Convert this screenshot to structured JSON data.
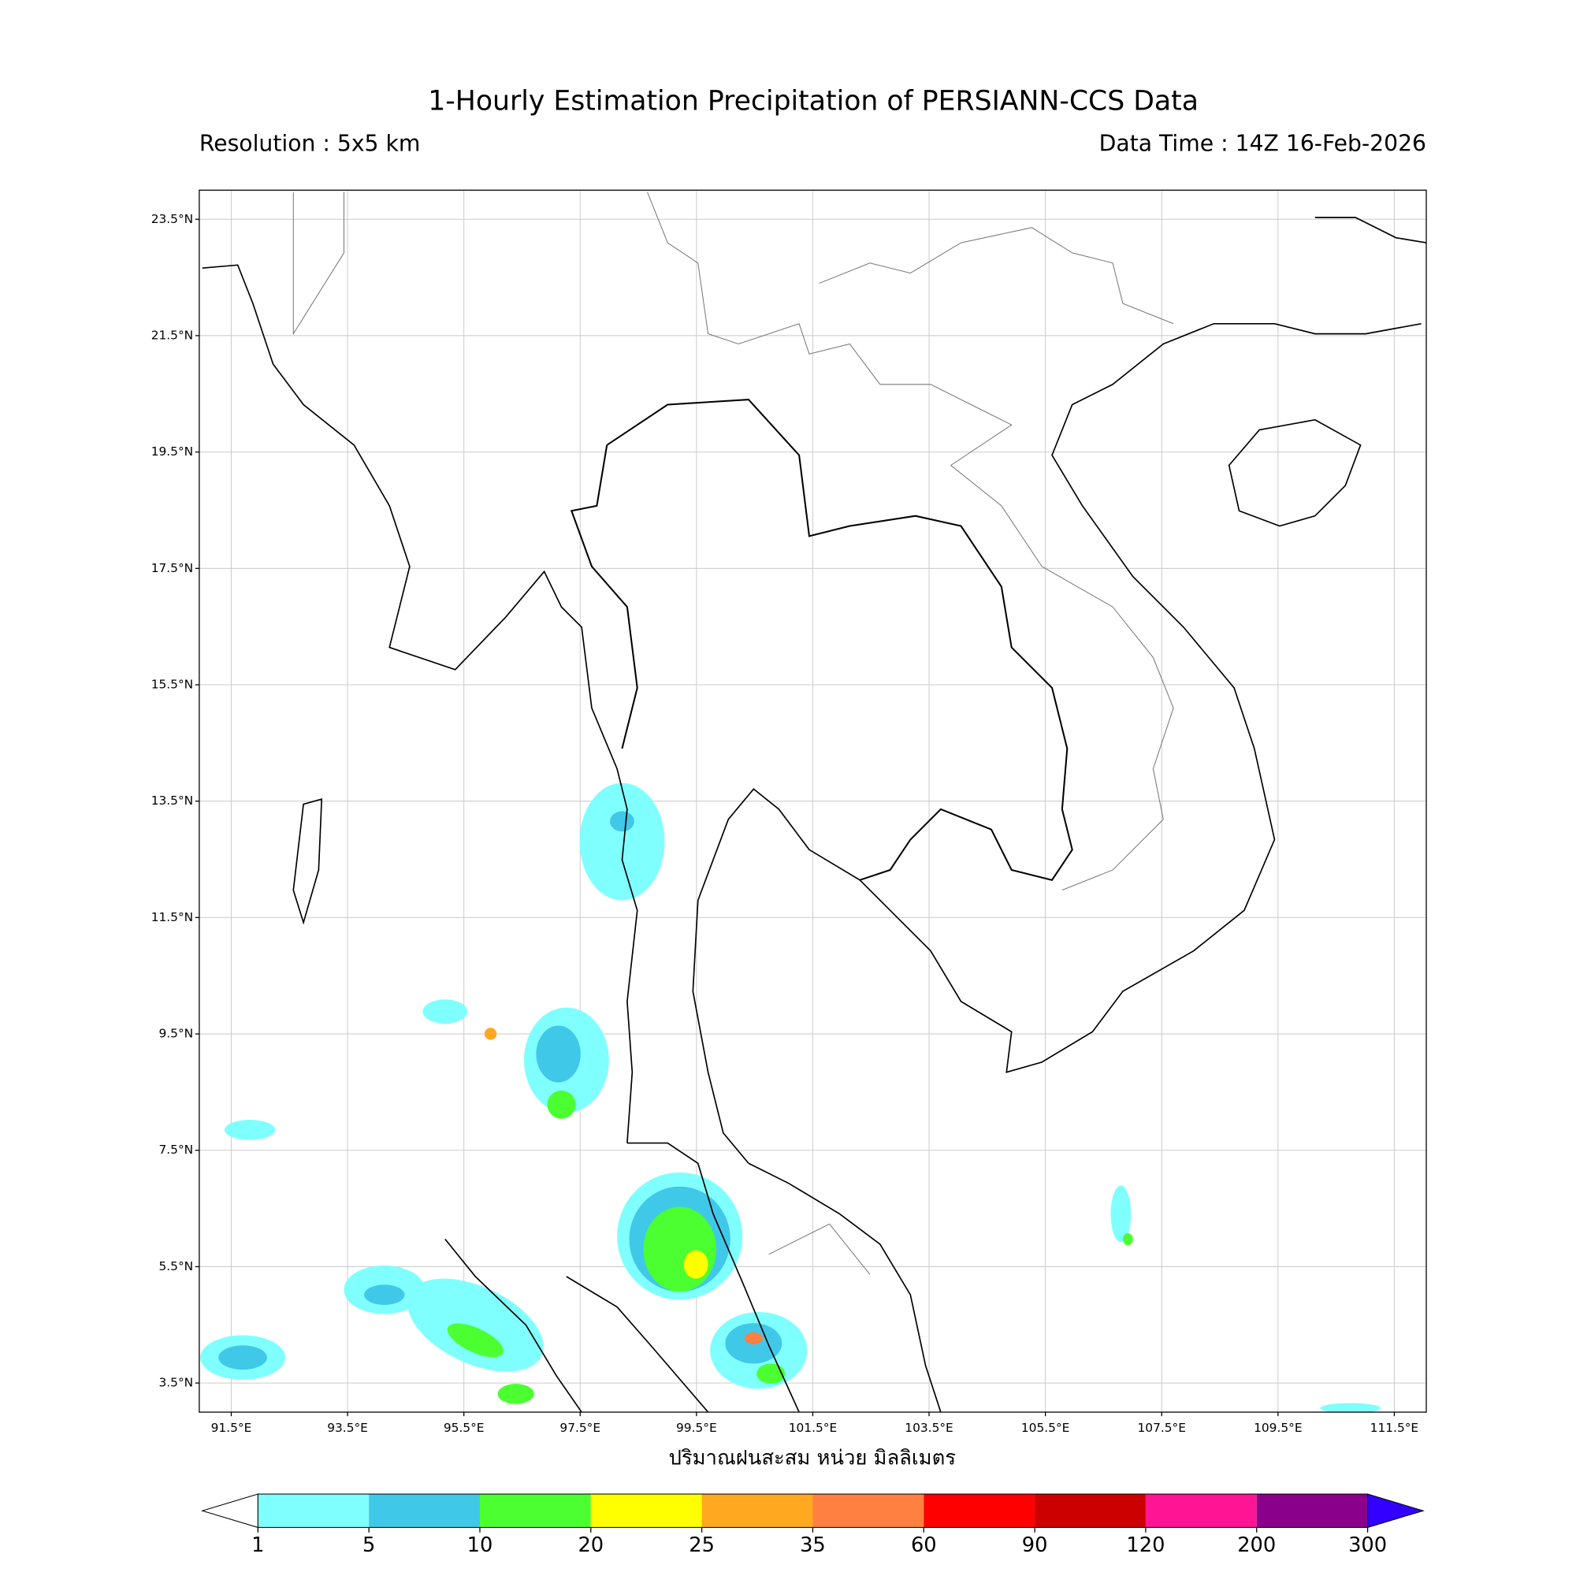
{
  "title": "1-Hourly Estimation Precipitation of PERSIANN-CCS Data",
  "resolution": "Resolution : 5x5 km",
  "data_time": "Data Time : 14Z 16-Feb-2026",
  "map": {
    "lon_range": [
      90.95,
      112.05
    ],
    "lat_range": [
      3.0,
      24.0
    ],
    "grid": true,
    "lat_ticks": [
      {
        "value": 23.5,
        "label": "23.5°N"
      },
      {
        "value": 21.5,
        "label": "21.5°N"
      },
      {
        "value": 19.5,
        "label": "19.5°N"
      },
      {
        "value": 17.5,
        "label": "17.5°N"
      },
      {
        "value": 15.5,
        "label": "15.5°N"
      },
      {
        "value": 13.5,
        "label": "13.5°N"
      },
      {
        "value": 11.5,
        "label": "11.5°N"
      },
      {
        "value": 9.5,
        "label": "9.5°N"
      },
      {
        "value": 7.5,
        "label": "7.5°N"
      },
      {
        "value": 5.5,
        "label": "5.5°N"
      },
      {
        "value": 3.5,
        "label": "3.5°N"
      }
    ],
    "lon_ticks": [
      {
        "value": 91.5,
        "label": "91.5°E"
      },
      {
        "value": 93.5,
        "label": "93.5°E"
      },
      {
        "value": 95.5,
        "label": "95.5°E"
      },
      {
        "value": 97.5,
        "label": "97.5°E"
      },
      {
        "value": 99.5,
        "label": "99.5°E"
      },
      {
        "value": 101.5,
        "label": "101.5°E"
      },
      {
        "value": 103.5,
        "label": "103.5°E"
      },
      {
        "value": 105.5,
        "label": "105.5°E"
      },
      {
        "value": 107.5,
        "label": "107.5°E"
      },
      {
        "value": 109.5,
        "label": "109.5°E"
      },
      {
        "value": 111.5,
        "label": "111.5°E"
      }
    ],
    "xlabel": "ปริมาณฝนสะสม หน่วย มิลลิเมตร"
  },
  "colorbar": {
    "levels": [
      1,
      5,
      10,
      20,
      25,
      35,
      60,
      90,
      120,
      200,
      300
    ],
    "colors": [
      "#80ffff",
      "#40c8e8",
      "#4cff30",
      "#ffff00",
      "#ffa820",
      "#ff8040",
      "#ff0000",
      "#cc0000",
      "#ff1493",
      "#8b008b"
    ],
    "under_color": "#ffffff",
    "over_color": "#3300ff"
  }
}
